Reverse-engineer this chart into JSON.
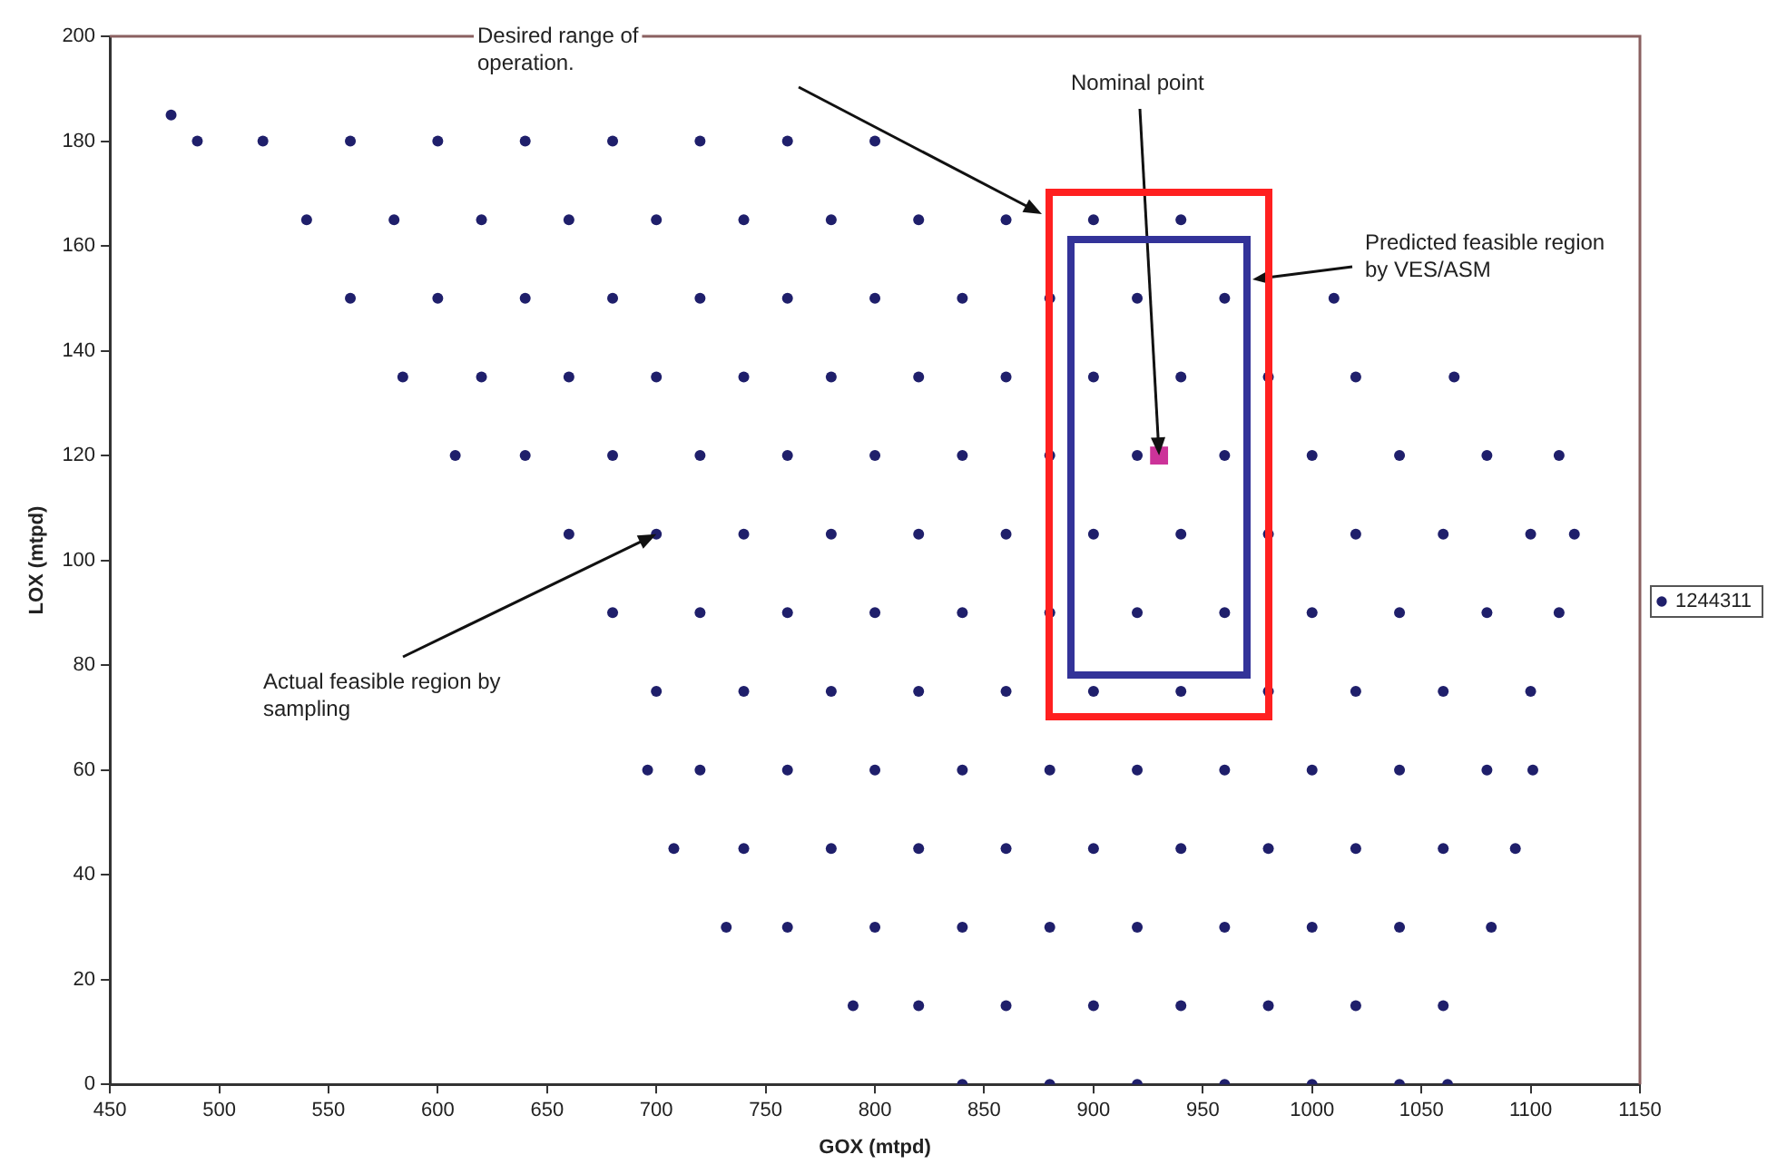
{
  "chart_data": {
    "type": "scatter",
    "xlabel": "GOX (mtpd)",
    "ylabel": "LOX (mtpd)",
    "xlim": [
      450,
      1150
    ],
    "xticks": [
      450,
      500,
      550,
      600,
      650,
      700,
      750,
      800,
      850,
      900,
      950,
      1000,
      1050,
      1100,
      1150
    ],
    "ylim": [
      0,
      200
    ],
    "yticks": [
      0,
      20,
      40,
      60,
      80,
      100,
      120,
      140,
      160,
      180,
      200
    ],
    "grid": false,
    "legend": "right",
    "series": [
      {
        "name": "1244311",
        "type": "scatter",
        "marker": "circle",
        "color": "#1f1f6b",
        "x": [
          840,
          880,
          920,
          960,
          1000,
          1040,
          1062,
          790,
          820,
          860,
          900,
          940,
          980,
          1020,
          1060,
          732,
          760,
          800,
          840,
          880,
          920,
          960,
          1000,
          1040,
          1082,
          708,
          740,
          780,
          820,
          860,
          900,
          940,
          980,
          1020,
          1060,
          1093,
          696,
          720,
          760,
          800,
          840,
          880,
          920,
          960,
          1000,
          1040,
          1080,
          1101,
          700,
          740,
          780,
          820,
          860,
          900,
          940,
          980,
          1020,
          1060,
          1100,
          680,
          720,
          760,
          800,
          840,
          880,
          920,
          960,
          1000,
          1040,
          1080,
          1113,
          660,
          700,
          740,
          780,
          820,
          860,
          900,
          940,
          980,
          1020,
          1060,
          1100,
          1120,
          608,
          640,
          680,
          720,
          760,
          800,
          840,
          880,
          920,
          960,
          1000,
          1040,
          1080,
          1113,
          584,
          620,
          660,
          700,
          740,
          780,
          820,
          860,
          900,
          940,
          980,
          1020,
          1065,
          560,
          600,
          640,
          680,
          720,
          760,
          800,
          840,
          880,
          920,
          960,
          1010,
          540,
          580,
          620,
          660,
          700,
          740,
          780,
          820,
          860,
          900,
          940,
          490,
          520,
          560,
          600,
          640,
          680,
          720,
          760,
          800,
          478
        ],
        "values": [
          0,
          0,
          0,
          0,
          0,
          0,
          0,
          15,
          15,
          15,
          15,
          15,
          15,
          15,
          15,
          30,
          30,
          30,
          30,
          30,
          30,
          30,
          30,
          30,
          30,
          45,
          45,
          45,
          45,
          45,
          45,
          45,
          45,
          45,
          45,
          45,
          60,
          60,
          60,
          60,
          60,
          60,
          60,
          60,
          60,
          60,
          60,
          60,
          75,
          75,
          75,
          75,
          75,
          75,
          75,
          75,
          75,
          75,
          75,
          90,
          90,
          90,
          90,
          90,
          90,
          90,
          90,
          90,
          90,
          90,
          90,
          105,
          105,
          105,
          105,
          105,
          105,
          105,
          105,
          105,
          105,
          105,
          105,
          105,
          120,
          120,
          120,
          120,
          120,
          120,
          120,
          120,
          120,
          120,
          120,
          120,
          120,
          120,
          135,
          135,
          135,
          135,
          135,
          135,
          135,
          135,
          135,
          135,
          135,
          135,
          135,
          150,
          150,
          150,
          150,
          150,
          150,
          150,
          150,
          150,
          150,
          150,
          150,
          165,
          165,
          165,
          165,
          165,
          165,
          165,
          165,
          165,
          165,
          165,
          180,
          180,
          180,
          180,
          180,
          180,
          180,
          180,
          180,
          185
        ]
      },
      {
        "type": "scatter",
        "marker": "square",
        "color": "#cc3399",
        "x": [
          930
        ],
        "values": [
          120
        ]
      }
    ],
    "annotations": [
      "Desired range of operation.",
      {
        "text": "Nominal point",
        "x": 930,
        "y": 120
      },
      "Predicted feasible region by VES/ASM",
      {
        "text": "Actual feasible region by sampling",
        "x": 700,
        "y": 105
      }
    ]
  }
}
